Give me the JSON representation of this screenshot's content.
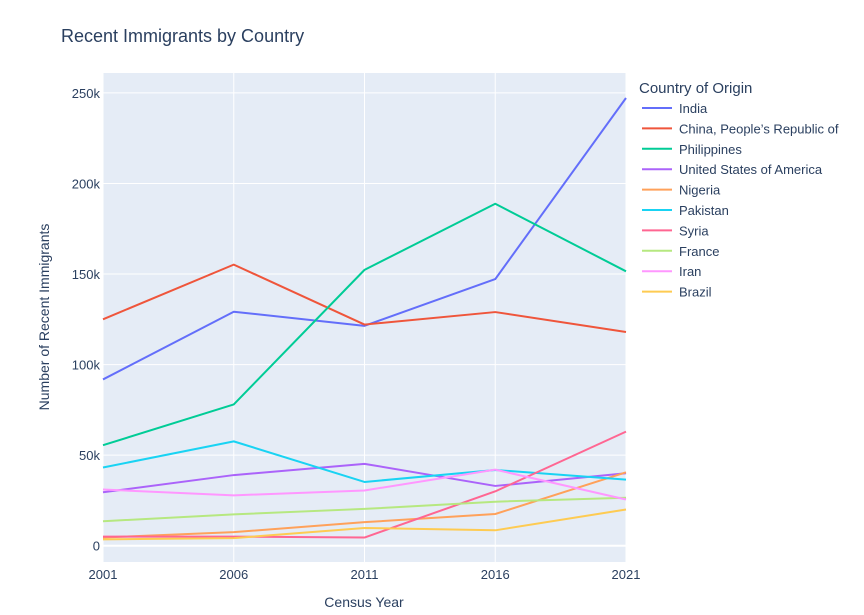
{
  "chart_data": {
    "type": "line",
    "title": "Recent Immigrants by Country",
    "xlabel": "Census Year",
    "ylabel": "Number of Recent Immigrants",
    "x": [
      2001,
      2006,
      2011,
      2016,
      2021
    ],
    "xlim": [
      2001,
      2021
    ],
    "ylim": [
      -9000,
      261000
    ],
    "y_ticks": [
      0,
      50000,
      100000,
      150000,
      200000,
      250000
    ],
    "y_tick_labels": [
      "0",
      "50k",
      "100k",
      "150k",
      "200k",
      "250k"
    ],
    "x_tick_labels": [
      "2001",
      "2006",
      "2011",
      "2016",
      "2021"
    ],
    "grid": true,
    "legend_title": "Country of Origin",
    "legend_position": "right",
    "plot_bg": "#e5ecf6",
    "series": [
      {
        "name": "India",
        "color": "#636efa",
        "values": [
          91800,
          129200,
          121400,
          147200,
          247200
        ]
      },
      {
        "name": "China, People’s Republic of",
        "color": "#ef553b",
        "values": [
          125000,
          155200,
          122100,
          129000,
          118000
        ]
      },
      {
        "name": "Philippines",
        "color": "#00cc96",
        "values": [
          55500,
          78000,
          152300,
          188800,
          151500
        ]
      },
      {
        "name": "United States of America",
        "color": "#ab63fa",
        "values": [
          29500,
          39000,
          45200,
          33000,
          40000
        ]
      },
      {
        "name": "Nigeria",
        "color": "#ffa15a",
        "values": [
          4500,
          7500,
          13000,
          17500,
          40500
        ]
      },
      {
        "name": "Pakistan",
        "color": "#19d3f3",
        "values": [
          43200,
          57600,
          35200,
          41800,
          36500
        ]
      },
      {
        "name": "Syria",
        "color": "#ff6692",
        "values": [
          5000,
          5000,
          4500,
          30000,
          63000
        ]
      },
      {
        "name": "France",
        "color": "#b6e880",
        "values": [
          13500,
          17300,
          20300,
          24300,
          26500
        ]
      },
      {
        "name": "Iran",
        "color": "#ff97ff",
        "values": [
          31000,
          27800,
          30500,
          42000,
          25500
        ]
      },
      {
        "name": "Brazil",
        "color": "#fecb52",
        "values": [
          3500,
          4200,
          9800,
          8500,
          20000
        ]
      }
    ]
  }
}
